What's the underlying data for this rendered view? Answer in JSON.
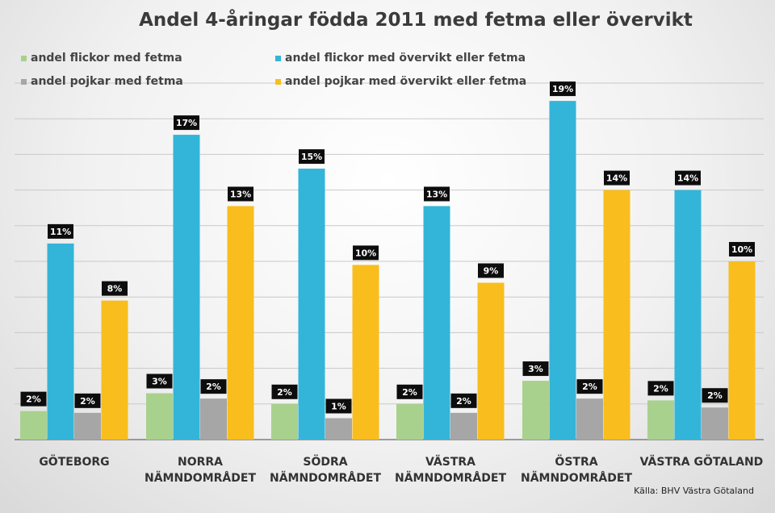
{
  "chart_data": {
    "type": "bar",
    "title": "Andel 4-åringar födda 2011 med fetma eller övervikt",
    "source": "Källa: BHV Västra Götaland",
    "categories": [
      [
        "GÖTEBORG"
      ],
      [
        "NORRA",
        "NÄMNDOMRÅDET"
      ],
      [
        "SÖDRA",
        "NÄMNDOMRÅDET"
      ],
      [
        "VÄSTRA",
        "NÄMNDOMRÅDET"
      ],
      [
        "ÖSTRA",
        "NÄMNDOMRÅDET"
      ],
      [
        "VÄSTRA GÖTALAND"
      ]
    ],
    "series": [
      {
        "name": "andel flickor  med fetma",
        "color": "#a9d18e",
        "values": [
          1.6,
          2.6,
          2.0,
          2.0,
          3.3,
          2.2
        ]
      },
      {
        "name": "andel flickor med övervikt eller fetma",
        "color": "#33b5d9",
        "values": [
          11.0,
          17.1,
          15.2,
          13.1,
          19.0,
          14.0
        ]
      },
      {
        "name": "andel pojkar med fetma",
        "color": "#a6a6a6",
        "values": [
          1.5,
          2.3,
          1.2,
          1.5,
          2.3,
          1.8
        ]
      },
      {
        "name": "andel pojkar med övervikt eller fetma",
        "color": "#f9be1d",
        "values": [
          7.8,
          13.1,
          9.8,
          8.8,
          14.0,
          10.0
        ]
      }
    ],
    "data_labels": [
      [
        "2%",
        "11%",
        "2%",
        "8%"
      ],
      [
        "3%",
        "17%",
        "2%",
        "13%"
      ],
      [
        "2%",
        "15%",
        "1%",
        "10%"
      ],
      [
        "2%",
        "13%",
        "2%",
        "9%"
      ],
      [
        "3%",
        "19%",
        "2%",
        "14%"
      ],
      [
        "2%",
        "14%",
        "2%",
        "10%"
      ]
    ],
    "ylim": [
      0,
      20
    ],
    "grid": true,
    "legend_position": "top"
  }
}
